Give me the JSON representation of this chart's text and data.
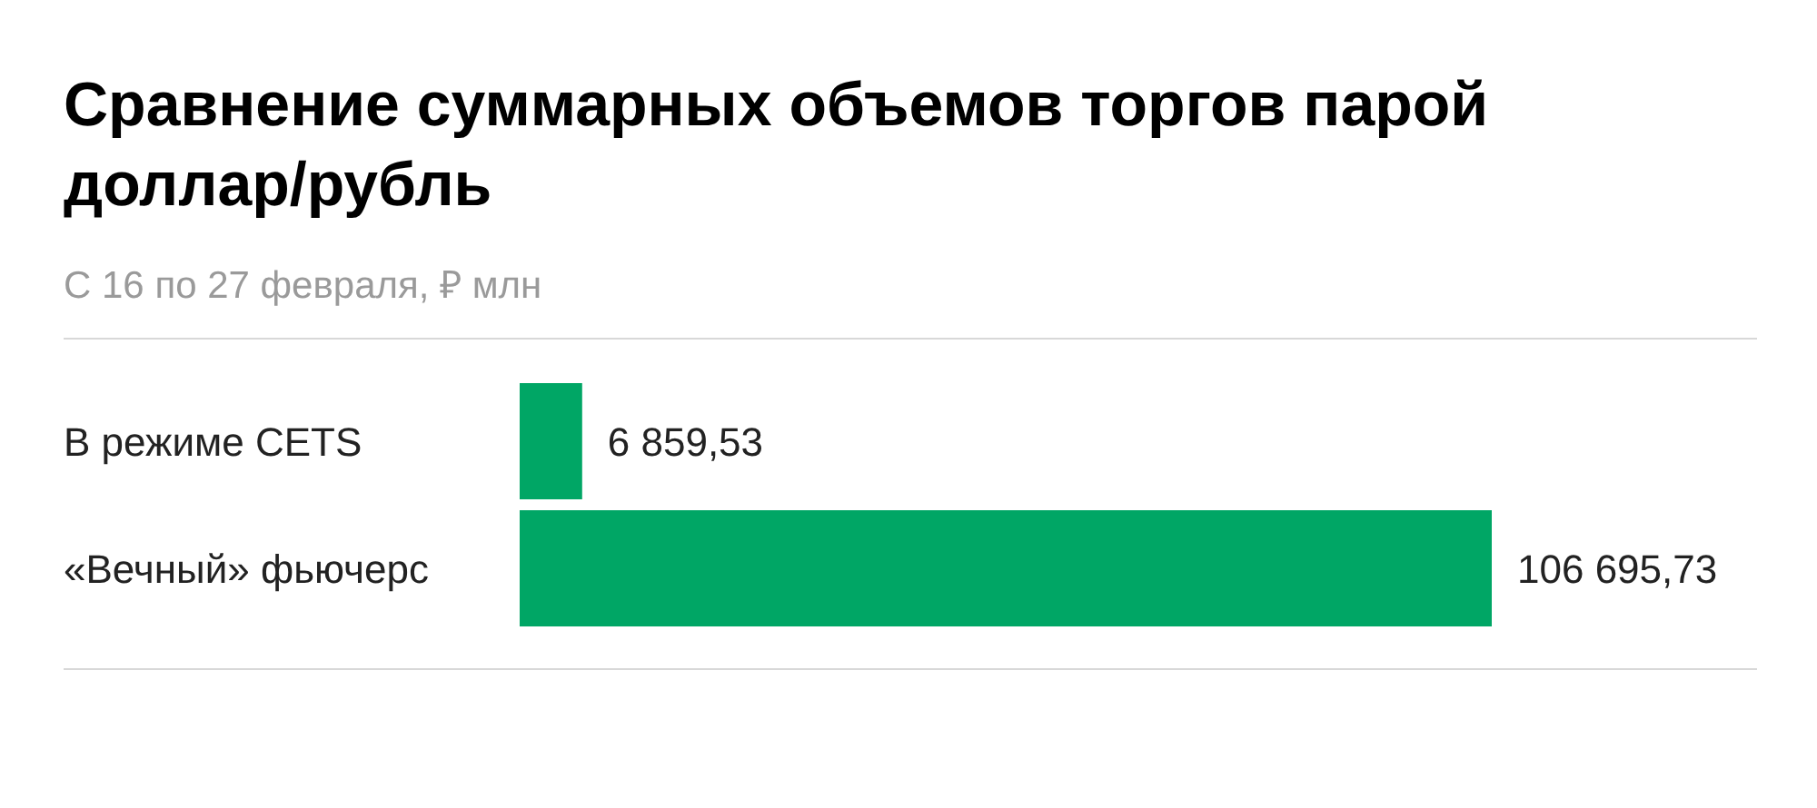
{
  "chart_data": {
    "type": "bar",
    "orientation": "horizontal",
    "title": "Сравнение суммарных объемов торгов парой доллар/рубль",
    "subtitle": "С 16 по 27 февраля, ₽ млн",
    "categories": [
      "В режиме CETS",
      "«Вечный» фьючерс"
    ],
    "values": [
      6859.53,
      106695.73
    ],
    "color": "#00a665",
    "value_labels": [
      "6 859,53",
      "106 695,73"
    ]
  }
}
